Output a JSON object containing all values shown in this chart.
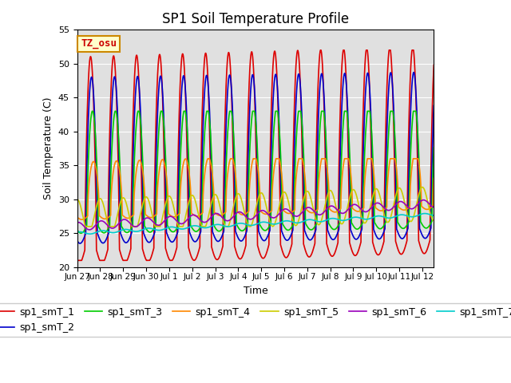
{
  "title": "SP1 Soil Temperature Profile",
  "xlabel": "Time",
  "ylabel": "Soil Temperature (C)",
  "ylim": [
    20,
    55
  ],
  "annotation": "TZ_osu",
  "series_labels": [
    "sp1_smT_1",
    "sp1_smT_2",
    "sp1_smT_3",
    "sp1_smT_4",
    "sp1_smT_5",
    "sp1_smT_6",
    "sp1_smT_7"
  ],
  "series_colors": [
    "#dd0000",
    "#0000cc",
    "#00cc00",
    "#ff8800",
    "#cccc00",
    "#9900bb",
    "#00cccc"
  ],
  "xtick_labels": [
    "Jun 27",
    "Jun 28",
    "Jun 29",
    "Jun 30",
    "Jul 1",
    "Jul 2",
    "Jul 3",
    "Jul 4",
    "Jul 5",
    "Jul 6",
    "Jul 7",
    "Jul 8",
    "Jul 9",
    "Jul 10",
    "Jul 11",
    "Jul 12"
  ],
  "num_days": 15.5,
  "background_color": "#e0e0e0",
  "figure_color": "#ffffff",
  "grid_color": "#ffffff",
  "title_fontsize": 12,
  "axis_fontsize": 9,
  "legend_fontsize": 9,
  "yticks": [
    20,
    25,
    30,
    35,
    40,
    45,
    50,
    55
  ]
}
